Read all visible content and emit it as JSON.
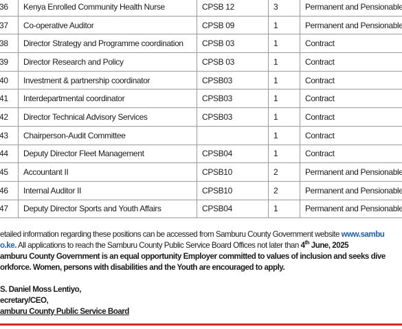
{
  "table": {
    "rows": [
      [
        "36",
        "Kenya Enrolled Community Health Nurse",
        "CPSB 12",
        "3",
        "Permanent and Pensionable"
      ],
      [
        "37",
        "Co-operative Auditor",
        "CPSB 09",
        "1",
        "Permanent and Pensionable"
      ],
      [
        "38",
        "Director Strategy and Programme coordination",
        "CPSB 03",
        "1",
        "Contract"
      ],
      [
        "39",
        "Director Research and Policy",
        "CPSB 03",
        "1",
        "Contract"
      ],
      [
        "40",
        "Investment & partnership coordinator",
        "CPSB03",
        "1",
        "Contract"
      ],
      [
        "41",
        "Interdepartmental coordinator",
        "CPSB03",
        "1",
        "Contract"
      ],
      [
        "42",
        "Director Technical Advisory Services",
        "CPSB03",
        "1",
        "Contract"
      ],
      [
        "43",
        "Chairperson-Audit Committee",
        null,
        "1",
        "Contract"
      ],
      [
        "44",
        "Deputy Director Fleet Management",
        "CPSB04",
        "1",
        "Contract"
      ],
      [
        "45",
        "Accountant II",
        "CPSB10",
        "2",
        "Permanent and Pensionable"
      ],
      [
        "46",
        "Internal Auditor II",
        "CPSB10",
        "2",
        "Permanent and Pensionable"
      ],
      [
        "47",
        "Deputy Director Sports and Youth Affairs",
        "CPSB04",
        "1",
        "Permanent and Pensionable"
      ]
    ]
  },
  "notice": {
    "line1": "etailed information regarding these positions can be accessed from Samburu County Government website ",
    "link1": "www.sambu",
    "link2": "o.ke.",
    "line2": " All applications to reach the Samburu County Public Service Board Offices not later than ",
    "date_day": "4",
    "date_sup": "th",
    "date_rest": " June, 2025",
    "line3": "amburu County Government is an equal opportunity Employer committed to values of inclusion and seeks dive",
    "line4": "orkforce. Women, persons with disabilities and the Youth are encouraged to apply."
  },
  "signature": {
    "name": "S. Daniel Moss Lentiyo,",
    "role": "ecretary/CEO,",
    "org": "amburu County Public Service Board"
  }
}
